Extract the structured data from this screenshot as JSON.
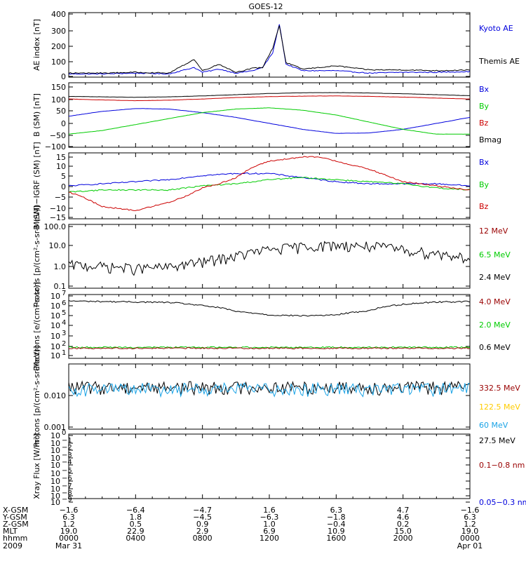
{
  "title": "GOES-12",
  "colors": {
    "black": "#000000",
    "blue": "#0000dd",
    "red": "#cc0000",
    "green": "#00cc00",
    "darkred": "#990000",
    "yellow": "#ffcc00",
    "cyan": "#1aa3e6",
    "axis": "#000000"
  },
  "chart_data": [
    {
      "type": "line",
      "ylabel": "AE index [nT]",
      "ylim": [
        0,
        400
      ],
      "yticks": [
        "400",
        "300",
        "200",
        "100",
        "0"
      ],
      "legend": [
        {
          "name": "Kyoto AE",
          "color": "blue"
        },
        {
          "name": "Themis AE",
          "color": "black"
        }
      ],
      "series": [
        {
          "name": "Kyoto AE",
          "color": "blue",
          "x": [
            0,
            2,
            4,
            6,
            7.5,
            8,
            9,
            10,
            11,
            11.6,
            12.2,
            12.6,
            13,
            14,
            16,
            18,
            20,
            22,
            24
          ],
          "values": [
            20,
            20,
            25,
            20,
            60,
            30,
            50,
            25,
            40,
            60,
            150,
            330,
            80,
            40,
            40,
            25,
            30,
            30,
            35
          ]
        },
        {
          "name": "Themis AE",
          "color": "black",
          "x": [
            0,
            2,
            4,
            6,
            7.5,
            8,
            9,
            10,
            11,
            11.6,
            12.2,
            12.6,
            13,
            14,
            16,
            18,
            20,
            22,
            24
          ],
          "values": [
            25,
            25,
            30,
            25,
            110,
            40,
            80,
            30,
            55,
            60,
            180,
            320,
            90,
            50,
            70,
            45,
            45,
            40,
            45
          ]
        }
      ]
    },
    {
      "type": "line",
      "ylabel": "B (SM) [nT]",
      "ylim": [
        -110,
        160
      ],
      "yticks": [
        "150",
        "100",
        "50",
        "0",
        "−50",
        "−100"
      ],
      "legend": [
        {
          "name": "Bx",
          "color": "blue"
        },
        {
          "name": "By",
          "color": "green"
        },
        {
          "name": "Bz",
          "color": "red"
        },
        {
          "name": "Bmag",
          "color": "black"
        }
      ],
      "series": [
        {
          "name": "Bx",
          "color": "blue",
          "x": [
            0,
            2,
            4,
            6,
            8,
            10,
            12,
            14,
            16,
            18,
            20,
            22,
            24
          ],
          "values": [
            20,
            40,
            52,
            50,
            35,
            15,
            -10,
            -35,
            -52,
            -50,
            -35,
            -10,
            15
          ]
        },
        {
          "name": "By",
          "color": "green",
          "x": [
            0,
            2,
            4,
            6,
            8,
            10,
            12,
            14,
            16,
            18,
            20,
            22,
            24
          ],
          "values": [
            -55,
            -40,
            -15,
            10,
            35,
            50,
            55,
            45,
            25,
            -5,
            -35,
            -55,
            -55
          ]
        },
        {
          "name": "Bz",
          "color": "red",
          "x": [
            0,
            2,
            4,
            6,
            8,
            10,
            12,
            14,
            16,
            18,
            20,
            22,
            24
          ],
          "values": [
            92,
            88,
            85,
            87,
            92,
            98,
            102,
            104,
            105,
            103,
            100,
            96,
            92
          ]
        },
        {
          "name": "Bmag",
          "color": "black",
          "x": [
            0,
            2,
            4,
            6,
            8,
            10,
            12,
            14,
            16,
            18,
            20,
            22,
            24
          ],
          "values": [
            103,
            101,
            99,
            101,
            105,
            110,
            115,
            118,
            119,
            117,
            114,
            110,
            106
          ]
        }
      ]
    },
    {
      "type": "line",
      "ylabel": "B (SM)−IGRF (SM) [nT]",
      "ylim": [
        -16,
        16
      ],
      "yticks": [
        "15",
        "10",
        "5",
        "0",
        "−5",
        "−10",
        "−15"
      ],
      "legend": [
        {
          "name": "Bx",
          "color": "blue"
        },
        {
          "name": "By",
          "color": "green"
        },
        {
          "name": "Bz",
          "color": "red"
        }
      ],
      "series": [
        {
          "name": "Bx",
          "color": "blue",
          "x": [
            0,
            2,
            4,
            6,
            8,
            10,
            12,
            14,
            16,
            18,
            20,
            22,
            24
          ],
          "values": [
            0,
            1,
            2,
            3,
            5,
            6,
            6,
            4,
            2,
            1,
            1,
            1,
            0
          ]
        },
        {
          "name": "By",
          "color": "green",
          "x": [
            0,
            2,
            4,
            6,
            8,
            10,
            12,
            14,
            16,
            18,
            20,
            22,
            24
          ],
          "values": [
            -3,
            -2,
            -2,
            -2,
            0,
            1,
            3,
            4,
            3,
            2,
            1,
            -1,
            -2
          ]
        },
        {
          "name": "Bz",
          "color": "red",
          "x": [
            0,
            1,
            2,
            3,
            4,
            5,
            6,
            7,
            8,
            9,
            10,
            11,
            12,
            13,
            14,
            15,
            16,
            17,
            18,
            19,
            20,
            21,
            22,
            23,
            24
          ],
          "values": [
            -3,
            -6,
            -10,
            -11,
            -12,
            -10,
            -8,
            -5,
            -1,
            1,
            4,
            9,
            12,
            13,
            14,
            14,
            12,
            10,
            8,
            5,
            2,
            1,
            0,
            -1,
            -2
          ]
        }
      ]
    },
    {
      "type": "line",
      "ylabel": "Protons [p/(cm²-s-sr-MeV)]",
      "yscale": "log",
      "ylim": [
        0.1,
        100
      ],
      "yticks": [
        "100.0",
        "10.0",
        "1.0",
        "0.1"
      ],
      "legend": [
        {
          "name": "12 MeV",
          "color": "darkred"
        },
        {
          "name": "6.5 MeV",
          "color": "green"
        },
        {
          "name": "2.4 MeV",
          "color": "black"
        }
      ],
      "series": [
        {
          "name": "2.4 MeV",
          "color": "black",
          "x": [
            0,
            2,
            4,
            6,
            8,
            10,
            12,
            14,
            16,
            18,
            20,
            22,
            24
          ],
          "values": [
            1.2,
            1.0,
            0.8,
            0.9,
            1.6,
            3,
            6,
            8.5,
            10,
            9,
            6,
            4,
            2.5
          ]
        }
      ]
    },
    {
      "type": "line",
      "ylabel": "Electrons [e/(cm²-s-sr)]",
      "yscale": "log",
      "ylim": [
        10,
        10000000
      ],
      "yticks_exp": [
        "7",
        "6",
        "5",
        "4",
        "3",
        "2",
        "1"
      ],
      "legend": [
        {
          "name": "4.0 MeV",
          "color": "darkred"
        },
        {
          "name": "2.0 MeV",
          "color": "green"
        },
        {
          "name": "0.6 MeV",
          "color": "black"
        }
      ],
      "series": [
        {
          "name": "0.6 MeV",
          "color": "black",
          "x": [
            0,
            2,
            4,
            6,
            8,
            10,
            12,
            14,
            16,
            18,
            20,
            22,
            24
          ],
          "values": [
            2500000,
            2200000,
            2000000,
            1800000,
            900000,
            250000,
            120000,
            100000,
            120000,
            300000,
            1200000,
            2000000,
            2200000
          ]
        },
        {
          "name": "2.0 MeV",
          "color": "green",
          "x": [
            0,
            24
          ],
          "values": [
            110,
            110
          ]
        },
        {
          "name": "4.0 MeV",
          "color": "darkred",
          "x": [
            0,
            24
          ],
          "values": [
            90,
            90
          ]
        }
      ]
    },
    {
      "type": "line",
      "ylabel": "Protons [p/(cm²-s-sr-MeV)]",
      "yscale": "log",
      "ylim": [
        0.001,
        0.1
      ],
      "yticks": [
        "0.010",
        "0.001"
      ],
      "legend": [
        {
          "name": "332.5 MeV",
          "color": "darkred"
        },
        {
          "name": "122.5 MeV",
          "color": "yellow"
        },
        {
          "name": "60 MeV",
          "color": "cyan"
        },
        {
          "name": "27.5 MeV",
          "color": "black"
        }
      ],
      "series": [
        {
          "name": "27.5 MeV",
          "color": "black",
          "x": [
            0,
            24
          ],
          "values": [
            0.02,
            0.02
          ]
        },
        {
          "name": "60 MeV",
          "color": "cyan",
          "x": [
            0,
            24
          ],
          "values": [
            0.018,
            0.018
          ]
        }
      ]
    },
    {
      "type": "line",
      "ylabel": "Xray Flux [W/m²]",
      "yscale": "log",
      "ylim": [
        1e-09,
        1
      ],
      "yticks_exp": [
        "0",
        "−1",
        "−2",
        "−3",
        "−4",
        "−5",
        "−6",
        "−7",
        "−8",
        "−9"
      ],
      "legend": [
        {
          "name": "0.1−0.8 nm",
          "color": "darkred"
        },
        {
          "name": "0.05−0.3 nm",
          "color": "blue"
        }
      ],
      "series": []
    }
  ],
  "xaxis": {
    "row_labels": [
      "X-GSM",
      "Y-GSM",
      "Z-GSM",
      "MLT",
      "hhmm",
      "2009"
    ],
    "columns": [
      {
        "hour": 0,
        "vals": [
          "−1.6",
          "6.3",
          "1.2",
          "19.0",
          "0000",
          "Mar 31"
        ]
      },
      {
        "hour": 4,
        "vals": [
          "−6.4",
          "1.8",
          "0.5",
          "22.9",
          "0400",
          ""
        ]
      },
      {
        "hour": 8,
        "vals": [
          "−4.7",
          "−4.5",
          "0.9",
          "2.9",
          "0800",
          ""
        ]
      },
      {
        "hour": 12,
        "vals": [
          "1.6",
          "−6.3",
          "1.0",
          "6.9",
          "1200",
          ""
        ]
      },
      {
        "hour": 16,
        "vals": [
          "6.3",
          "−1.8",
          "−0.4",
          "10.9",
          "1600",
          ""
        ]
      },
      {
        "hour": 20,
        "vals": [
          "4.7",
          "4.6",
          "0.2",
          "15.0",
          "2000",
          ""
        ]
      },
      {
        "hour": 24,
        "vals": [
          "−1.6",
          "6.3",
          "1.2",
          "19.0",
          "0000",
          "Apr 01"
        ]
      }
    ]
  }
}
